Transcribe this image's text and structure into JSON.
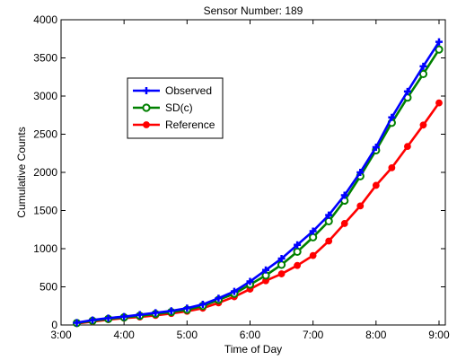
{
  "chart_data": {
    "type": "line",
    "title": "Sensor Number: 189",
    "xlabel": "Time of Day",
    "ylabel": "Cumulative Counts",
    "xlim": [
      3.0,
      9.1
    ],
    "ylim": [
      0,
      4000
    ],
    "x_ticks": [
      {
        "value": 3,
        "label": "3:00"
      },
      {
        "value": 4,
        "label": "4:00"
      },
      {
        "value": 5,
        "label": "5:00"
      },
      {
        "value": 6,
        "label": "6:00"
      },
      {
        "value": 7,
        "label": "7:00"
      },
      {
        "value": 8,
        "label": "8:00"
      },
      {
        "value": 9,
        "label": "9:00"
      }
    ],
    "y_ticks": [
      0,
      500,
      1000,
      1500,
      2000,
      2500,
      3000,
      3500,
      4000
    ],
    "grid": false,
    "legend_position": "upper-left",
    "x": [
      3.25,
      3.5,
      3.75,
      4.0,
      4.25,
      4.5,
      4.75,
      5.0,
      5.25,
      5.5,
      5.75,
      6.0,
      6.25,
      6.5,
      6.75,
      7.0,
      7.25,
      7.5,
      7.75,
      8.0,
      8.25,
      8.5,
      8.75,
      9.0
    ],
    "series": [
      {
        "name": "Observed",
        "color": "#0000ff",
        "marker": "plus",
        "values": [
          30,
          65,
          90,
          110,
          135,
          160,
          185,
          220,
          270,
          350,
          440,
          570,
          720,
          870,
          1050,
          1230,
          1440,
          1700,
          2000,
          2330,
          2720,
          3060,
          3390,
          3710
        ]
      },
      {
        "name": "SD(c)",
        "color": "#008000",
        "marker": "circle",
        "values": [
          25,
          55,
          80,
          100,
          120,
          145,
          170,
          200,
          250,
          330,
          410,
          530,
          650,
          790,
          960,
          1150,
          1360,
          1630,
          1950,
          2290,
          2650,
          2980,
          3290,
          3610
        ]
      },
      {
        "name": "Reference",
        "color": "#ff0000",
        "marker": "dot",
        "values": [
          20,
          45,
          70,
          90,
          105,
          125,
          150,
          180,
          220,
          290,
          370,
          470,
          580,
          670,
          780,
          910,
          1100,
          1330,
          1560,
          1830,
          2060,
          2340,
          2620,
          2910
        ]
      }
    ]
  }
}
